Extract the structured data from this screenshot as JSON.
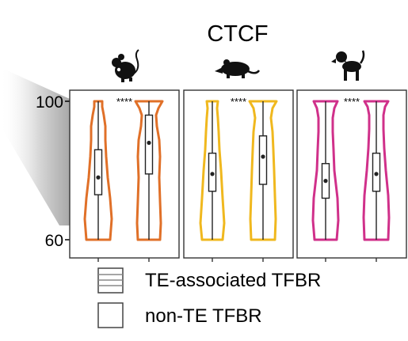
{
  "chart_data": {
    "type": "violin",
    "title": "CTCF",
    "y_ticks": [
      100,
      60
    ],
    "ylim": [
      60,
      100
    ],
    "significance": "****",
    "panels": [
      {
        "species_icon": "mouse-icon",
        "color": "#E07028",
        "groups": [
          {
            "name": "TE-associated TFBR",
            "min": 60,
            "q1": 73,
            "median": 78,
            "q3": 86,
            "max": 100
          },
          {
            "name": "non-TE TFBR",
            "min": 60,
            "q1": 79,
            "median": 88,
            "q3": 96,
            "max": 100
          }
        ]
      },
      {
        "species_icon": "rat-icon",
        "color": "#F0B81E",
        "groups": [
          {
            "name": "TE-associated TFBR",
            "min": 60,
            "q1": 74,
            "median": 79,
            "q3": 85,
            "max": 100
          },
          {
            "name": "non-TE TFBR",
            "min": 60,
            "q1": 76,
            "median": 84,
            "q3": 90,
            "max": 100
          }
        ]
      },
      {
        "species_icon": "dog-icon",
        "color": "#D0308A",
        "groups": [
          {
            "name": "TE-associated TFBR",
            "min": 60,
            "q1": 72,
            "median": 77,
            "q3": 82,
            "max": 100
          },
          {
            "name": "non-TE TFBR",
            "min": 60,
            "q1": 74,
            "median": 79,
            "q3": 85,
            "max": 100
          }
        ]
      }
    ],
    "legend": [
      {
        "label": "TE-associated TFBR",
        "pattern": "striped"
      },
      {
        "label": "non-TE TFBR",
        "pattern": "plain"
      }
    ]
  }
}
